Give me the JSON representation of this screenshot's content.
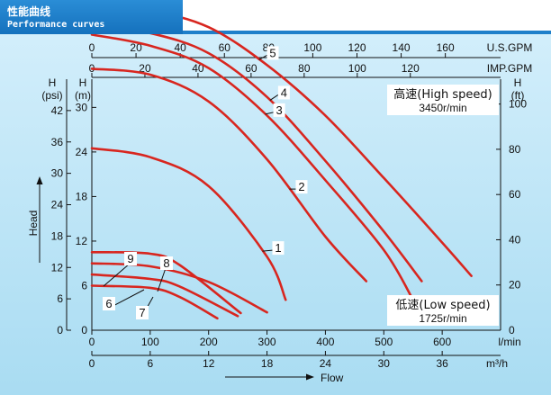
{
  "header": {
    "title_cn": "性能曲线",
    "title_en": "Performance curves"
  },
  "colors": {
    "background": "#bfe6f6",
    "header": "#1e7fca",
    "curve": "#d8261f",
    "axis": "#111111"
  },
  "chart_data": {
    "type": "line",
    "title": "",
    "xlabel": "Flow",
    "ylabel": "Head",
    "axes": {
      "x_lmin": {
        "unit": "l/min",
        "range": [
          0,
          700
        ],
        "ticks": [
          0,
          100,
          200,
          300,
          400,
          500,
          600
        ]
      },
      "x_m3h": {
        "unit": "m³/h",
        "range": [
          0,
          42
        ],
        "ticks": [
          0,
          6,
          12,
          18,
          24,
          30,
          36
        ]
      },
      "x_usgpm": {
        "unit": "U.S.GPM",
        "range": [
          0,
          185
        ],
        "ticks": [
          0,
          20,
          40,
          60,
          80,
          100,
          120,
          140,
          160
        ]
      },
      "x_impgpm": {
        "unit": "IMP.GPM",
        "range": [
          0,
          154
        ],
        "ticks": [
          0,
          20,
          40,
          60,
          80,
          100,
          120
        ]
      },
      "y_psi": {
        "unit": "(psi)",
        "label": "H",
        "range": [
          0,
          48
        ],
        "ticks": [
          0,
          6,
          12,
          18,
          24,
          30,
          36,
          42
        ]
      },
      "y_m": {
        "unit": "(m)",
        "label": "H",
        "range": [
          0,
          33.8
        ],
        "ticks": [
          0,
          6,
          12,
          18,
          24,
          30
        ]
      },
      "y_ft": {
        "unit": "(ft)",
        "label": "H",
        "range": [
          0,
          111
        ],
        "ticks": [
          0,
          20,
          40,
          60,
          80,
          100
        ]
      }
    },
    "x_unit": "l/min",
    "y_unit": "m",
    "series": [
      {
        "name": "1",
        "group": "high",
        "points": [
          [
            0,
            24.5
          ],
          [
            100,
            23.3
          ],
          [
            200,
            19.4
          ],
          [
            300,
            9.9
          ],
          [
            332,
            4.1
          ]
        ]
      },
      {
        "name": "2",
        "group": "high",
        "points": [
          [
            0,
            35.2
          ],
          [
            100,
            34.4
          ],
          [
            200,
            30.8
          ],
          [
            300,
            23.0
          ],
          [
            400,
            12.6
          ],
          [
            470,
            6.6
          ]
        ]
      },
      {
        "name": "3",
        "group": "high",
        "points": [
          [
            0,
            39.8
          ],
          [
            100,
            38.3
          ],
          [
            200,
            35.3
          ],
          [
            300,
            28.9
          ],
          [
            400,
            20.2
          ],
          [
            500,
            10.8
          ],
          [
            550,
            4.1
          ]
        ]
      },
      {
        "name": "4",
        "group": "high",
        "points": [
          [
            0,
            41.0
          ],
          [
            100,
            40.0
          ],
          [
            200,
            37.3
          ],
          [
            300,
            31.4
          ],
          [
            400,
            22.8
          ],
          [
            500,
            13.3
          ],
          [
            565,
            6.6
          ]
        ]
      },
      {
        "name": "5",
        "group": "high",
        "points": [
          [
            0,
            43.6
          ],
          [
            100,
            43.0
          ],
          [
            200,
            40.8
          ],
          [
            300,
            35.7
          ],
          [
            400,
            28.9
          ],
          [
            500,
            20.5
          ],
          [
            600,
            11.8
          ],
          [
            650,
            7.3
          ]
        ]
      },
      {
        "name": "6",
        "group": "low",
        "points": [
          [
            0,
            6.0
          ],
          [
            100,
            5.7
          ],
          [
            150,
            4.5
          ],
          [
            215,
            1.6
          ]
        ]
      },
      {
        "name": "7",
        "group": "low",
        "points": [
          [
            0,
            7.5
          ],
          [
            100,
            6.9
          ],
          [
            150,
            5.9
          ],
          [
            250,
            1.9
          ]
        ]
      },
      {
        "name": "8",
        "group": "low",
        "points": [
          [
            0,
            9.0
          ],
          [
            100,
            8.6
          ],
          [
            200,
            6.5
          ],
          [
            300,
            2.4
          ]
        ]
      },
      {
        "name": "9",
        "group": "low",
        "points": [
          [
            0,
            10.5
          ],
          [
            100,
            10.3
          ],
          [
            150,
            8.8
          ],
          [
            255,
            2.3
          ]
        ]
      }
    ],
    "annotations": {
      "high_speed": {
        "label": "高速(High speed)",
        "rpm": "3450r/min"
      },
      "low_speed": {
        "label": "低速(Low speed)",
        "rpm": "1725r/min"
      }
    },
    "grid": false,
    "legend": "inline-labels"
  }
}
